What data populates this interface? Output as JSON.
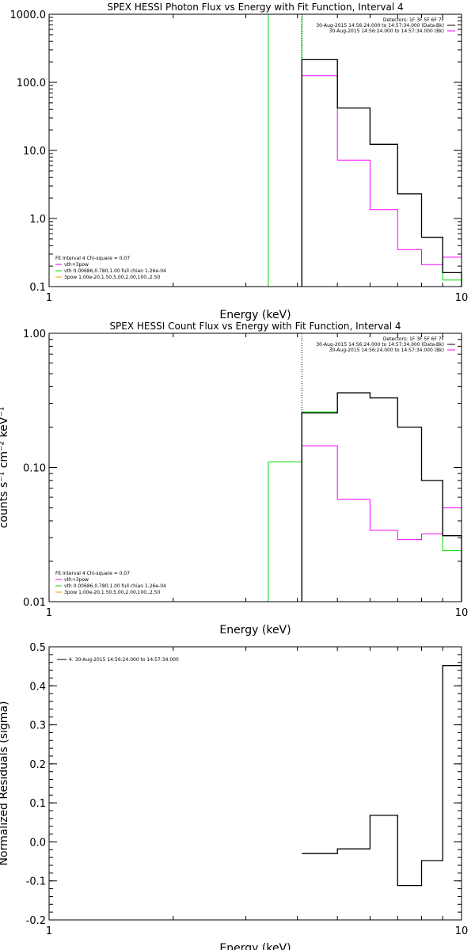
{
  "colors": {
    "data": "#000000",
    "model": "#00dd00",
    "background": "#ff00ff",
    "component_b": "#ff9900",
    "axes": "#000000"
  },
  "chart_data": [
    {
      "id": "photon",
      "type": "line",
      "title": "SPEX HESSI Photon Flux vs Energy with Fit Function, Interval 4",
      "xlabel": "Energy (keV)",
      "ylabel": "",
      "xscale": "log",
      "yscale": "log",
      "xlim": [
        1,
        10
      ],
      "ylim": [
        0.1,
        1000
      ],
      "x_ticks": [
        1,
        10
      ],
      "x_tick_labels": [
        "1",
        "10"
      ],
      "y_ticks": [
        0.1,
        1,
        10,
        100,
        1000
      ],
      "y_tick_labels": [
        "0.1",
        "1.0",
        "10.0",
        "100.0",
        "1000.0"
      ],
      "header_lines": [
        "Detectors: 1F 3F 5F 6F 7F",
        "30-Aug-2015 14:56:24.000 to 14:57:34.000 (Data-Bk)",
        "30-Aug-2015 14:56:24.000 to 14:57:34.000 (Bk)"
      ],
      "legend_lines": [
        "Fit Interval 4   Chi-square = 0.07",
        "vth+3pow",
        "vth 0.00686,0.780,1.00   full chian 1.26e-04",
        "3pow 1.00e-20,1.50,5.00,2.00,100.,2.50"
      ],
      "series": [
        {
          "name": "30-Aug-2015 14:56:24.000 to 14:57:34.000 (Data-Bk)",
          "color": "#000000",
          "edges": [
            4.1,
            5.0,
            6.0,
            7.0,
            8.0,
            9.0,
            10.0
          ],
          "values": [
            215,
            42,
            12.3,
            2.3,
            0.53,
            0.16
          ]
        },
        {
          "name": "30-Aug-2015 14:56:24.000 to 14:57:34.000 (Bk)",
          "color": "#ff00ff",
          "edges": [
            4.1,
            5.0,
            6.0,
            7.0,
            8.0,
            9.0,
            10.0
          ],
          "values": [
            125,
            7.2,
            1.35,
            0.35,
            0.21,
            0.27
          ]
        },
        {
          "name": "vth+3pow",
          "color": "#00dd00",
          "edges": [
            3.4,
            4.1,
            5.0,
            6.0,
            7.0,
            8.0,
            9.0,
            10.0
          ],
          "values": [
            1050,
            215,
            42,
            12.3,
            2.3,
            0.53,
            0.125
          ]
        }
      ]
    },
    {
      "id": "count",
      "type": "line",
      "title": "SPEX HESSI Count Flux vs Energy with Fit Function, Interval 4",
      "xlabel": "Energy (keV)",
      "ylabel": "counts s⁻¹ cm⁻² keV⁻¹",
      "xscale": "log",
      "yscale": "log",
      "xlim": [
        1,
        10
      ],
      "ylim": [
        0.01,
        1
      ],
      "x_ticks": [
        1,
        10
      ],
      "x_tick_labels": [
        "1",
        "10"
      ],
      "y_ticks": [
        0.01,
        0.1,
        1
      ],
      "y_tick_labels": [
        "0.01",
        "0.10",
        "1.00"
      ],
      "header_lines": [
        "Detectors: 1F 3F 5F 6F 7F",
        "30-Aug-2015 14:56:24.000 to 14:57:34.000 (Data-Bk)",
        "30-Aug-2015 14:56:24.000 to 14:57:34.000 (Bk)"
      ],
      "legend_lines": [
        "Fit Interval 4   Chi-square = 0.07",
        "vth+3pow",
        "vth 0.00686,0.780,1.00   full chian 1.26e-04",
        "3pow 1.00e-20,1.50,5.00,2.00,100.,2.50"
      ],
      "series": [
        {
          "name": "30-Aug-2015 14:56:24.000 to 14:57:34.000 (Data-Bk)",
          "color": "#000000",
          "edges": [
            4.1,
            5.0,
            6.0,
            7.0,
            8.0,
            9.0,
            10.0
          ],
          "values": [
            0.255,
            0.36,
            0.33,
            0.2,
            0.08,
            0.031
          ]
        },
        {
          "name": "30-Aug-2015 14:56:24.000 to 14:57:34.000 (Bk)",
          "color": "#ff00ff",
          "edges": [
            4.1,
            5.0,
            6.0,
            7.0,
            8.0,
            9.0,
            10.0
          ],
          "values": [
            0.145,
            0.058,
            0.034,
            0.029,
            0.032,
            0.05
          ]
        },
        {
          "name": "vth+3pow",
          "color": "#00dd00",
          "edges": [
            3.4,
            4.1,
            5.0,
            6.0,
            7.0,
            8.0,
            9.0,
            10.0
          ],
          "values": [
            0.11,
            0.26,
            0.36,
            0.33,
            0.2,
            0.08,
            0.024
          ]
        }
      ]
    },
    {
      "id": "resid",
      "type": "line",
      "title": "",
      "xlabel": "Energy (keV)",
      "ylabel": "Normalized Residuals (sigma)",
      "xscale": "log",
      "yscale": "linear",
      "xlim": [
        1,
        10
      ],
      "ylim": [
        -0.2,
        0.5
      ],
      "x_ticks": [
        1,
        10
      ],
      "x_tick_labels": [
        "1",
        "10"
      ],
      "y_ticks": [
        -0.2,
        -0.1,
        0.0,
        0.1,
        0.2,
        0.3,
        0.4,
        0.5
      ],
      "y_tick_labels": [
        "-0.2",
        "-0.1",
        "0.0",
        "0.1",
        "0.2",
        "0.3",
        "0.4",
        "0.5"
      ],
      "header_lines": [],
      "legend_lines": [],
      "legend_entry": "4. 30-Aug-2015 14:56:24.000 to 14:57:34.000",
      "series": [
        {
          "name": "4. 30-Aug-2015 14:56:24.000 to 14:57:34.000",
          "color": "#000000",
          "edges": [
            4.1,
            5.0,
            6.0,
            7.0,
            8.0,
            9.0,
            10.0
          ],
          "values": [
            -0.03,
            -0.018,
            0.068,
            -0.112,
            -0.048,
            0.452
          ]
        }
      ]
    }
  ]
}
